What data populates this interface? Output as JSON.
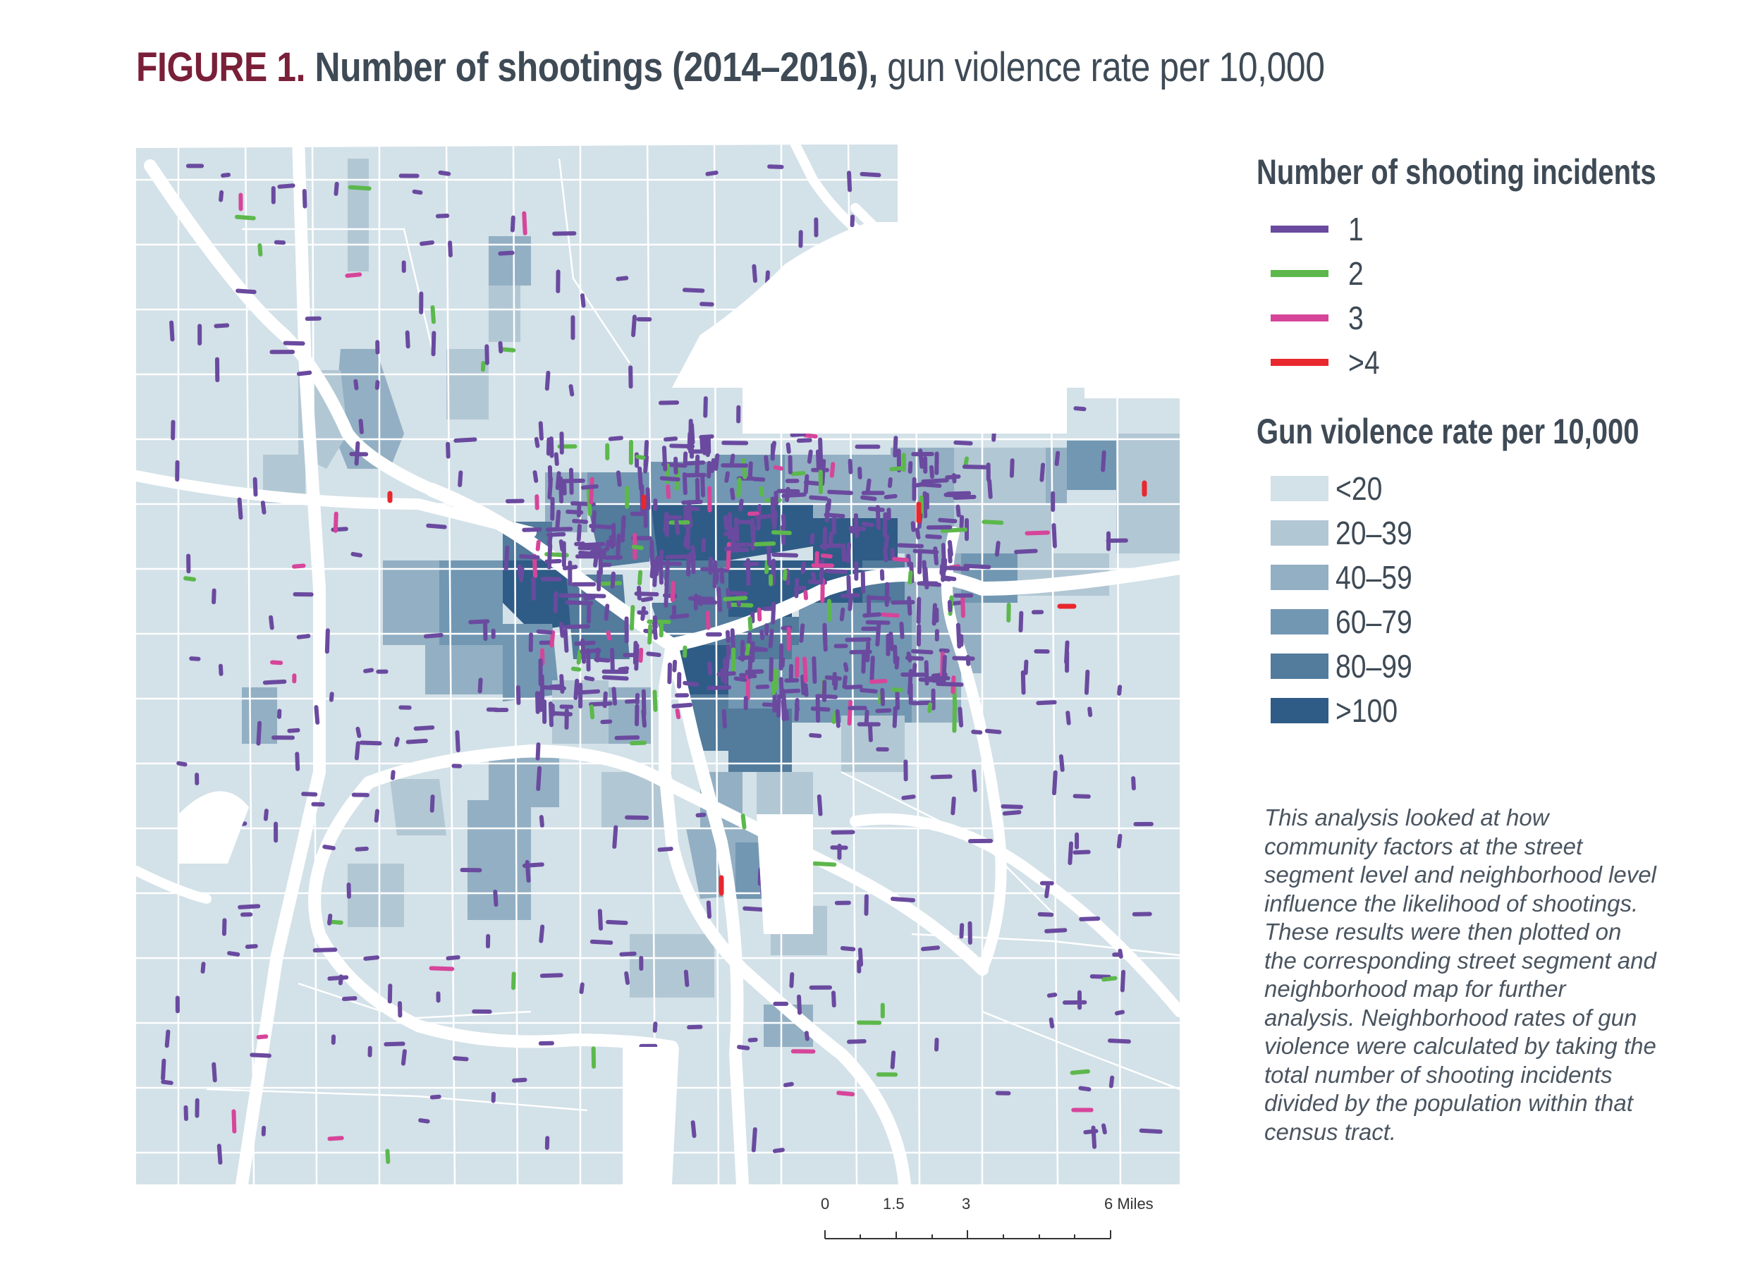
{
  "figure": {
    "label": "FIGURE 1.",
    "title": "Number of shootings (2014–2016),",
    "subtitle": "gun violence rate per 10,000"
  },
  "legend_shootings": {
    "title": "Number of shooting incidents",
    "items": [
      {
        "label": "1",
        "color": "#6a4a9f"
      },
      {
        "label": "2",
        "color": "#5cb84c"
      },
      {
        "label": "3",
        "color": "#d6459a"
      },
      {
        "label": ">4",
        "color": "#e8272e"
      }
    ]
  },
  "legend_rate": {
    "title": "Gun violence rate per 10,000",
    "items": [
      {
        "label": "<20",
        "color": "#d3e1e8"
      },
      {
        "label": "20–39",
        "color": "#b2c7d4"
      },
      {
        "label": "40–59",
        "color": "#93afc3"
      },
      {
        "label": "60–79",
        "color": "#7297b2"
      },
      {
        "label": "80–99",
        "color": "#527b9c"
      },
      {
        "label": ">100",
        "color": "#2f5c86"
      }
    ]
  },
  "note": "This analysis looked at how community factors at the street segment level and neighborhood level influence the likelihood of shootings. These results were then plotted on the corresponding street segment and neighborhood map for further analysis. Neighborhood rates of gun violence were calculated by taking the total number of shooting incidents divided by the population within that census tract.",
  "scale_bar": {
    "labels": [
      "0",
      "1.5",
      "3",
      "6 Miles"
    ],
    "values": [
      0,
      1.5,
      3,
      6
    ]
  }
}
